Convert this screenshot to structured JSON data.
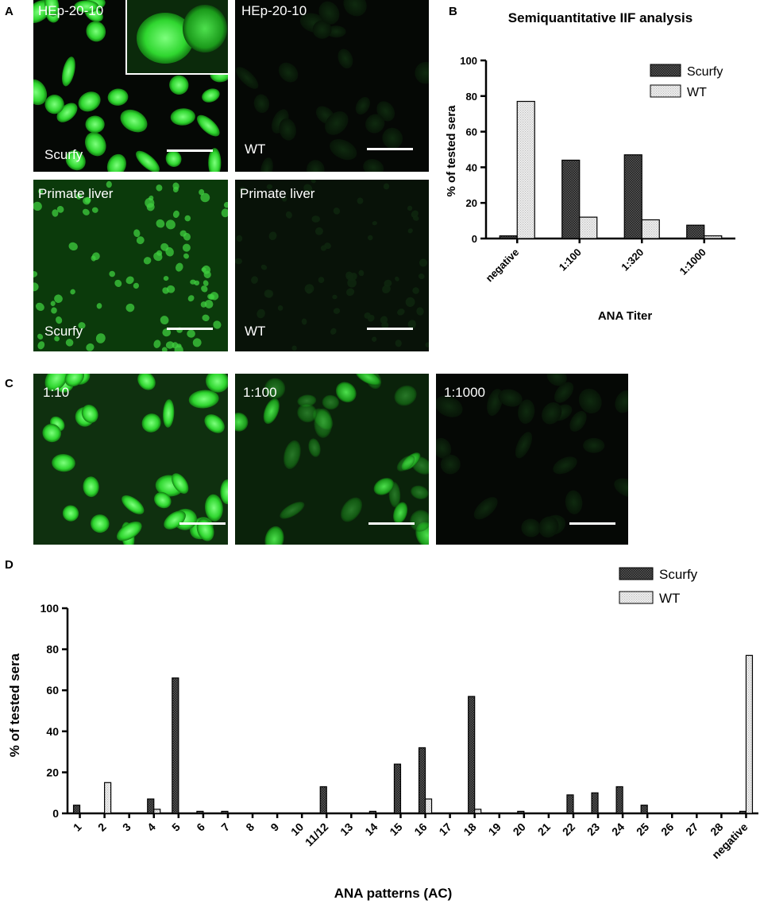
{
  "panel_letters": {
    "a": "A",
    "b": "B",
    "c": "C",
    "d": "D"
  },
  "panel_a": {
    "images": [
      {
        "title": "HEp-20-10",
        "group": "Scurfy"
      },
      {
        "title": "HEp-20-10",
        "group": "WT"
      },
      {
        "title": "Primate liver",
        "group": "Scurfy"
      },
      {
        "title": "Primate liver",
        "group": "WT"
      }
    ]
  },
  "panel_c": {
    "images": [
      {
        "label": "1:10"
      },
      {
        "label": "1:100"
      },
      {
        "label": "1:1000"
      }
    ]
  },
  "colors": {
    "scurfy_fill": "#3a3a3a",
    "wt_fill": "#e6e6e6",
    "fluorescence_bright": "#2fd62f",
    "background_dark": "#050805"
  },
  "chart_data": [
    {
      "type": "bar",
      "title": "Semiquantitative IIF analysis",
      "xlabel": "ANA Titer",
      "ylabel": "% of tested sera",
      "ylim": [
        0,
        100
      ],
      "yticks": [
        0,
        20,
        40,
        60,
        80,
        100
      ],
      "categories": [
        "negative",
        "1:100",
        "1:320",
        "1:1000"
      ],
      "series": [
        {
          "name": "Scurfy",
          "values": [
            1.5,
            44,
            47,
            7.5
          ]
        },
        {
          "name": "WT",
          "values": [
            77,
            12,
            10.5,
            1.5
          ]
        }
      ],
      "legend_position": "top-right"
    },
    {
      "type": "bar",
      "xlabel": "ANA patterns (AC)",
      "ylabel": "% of tested sera",
      "ylim": [
        0,
        100
      ],
      "yticks": [
        0,
        20,
        40,
        60,
        80,
        100
      ],
      "categories": [
        "1",
        "2",
        "3",
        "4",
        "5",
        "6",
        "7",
        "8",
        "9",
        "10",
        "11/12",
        "13",
        "14",
        "15",
        "16",
        "17",
        "18",
        "19",
        "20",
        "21",
        "22",
        "23",
        "24",
        "25",
        "26",
        "27",
        "28",
        "negative"
      ],
      "series": [
        {
          "name": "Scurfy",
          "values": [
            4,
            0,
            0,
            7,
            66,
            1,
            1,
            0,
            0,
            0,
            13,
            0,
            1,
            24,
            32,
            0,
            57,
            0,
            1,
            0,
            9,
            10,
            13,
            4,
            0,
            0,
            0,
            1
          ]
        },
        {
          "name": "WT",
          "values": [
            0,
            15,
            0,
            2,
            0,
            0,
            0,
            0,
            0,
            0,
            0,
            0,
            0,
            0,
            7,
            0,
            2,
            0,
            0,
            0,
            0,
            0,
            0,
            0,
            0,
            0,
            0,
            77
          ]
        }
      ],
      "legend_position": "top-right"
    }
  ]
}
